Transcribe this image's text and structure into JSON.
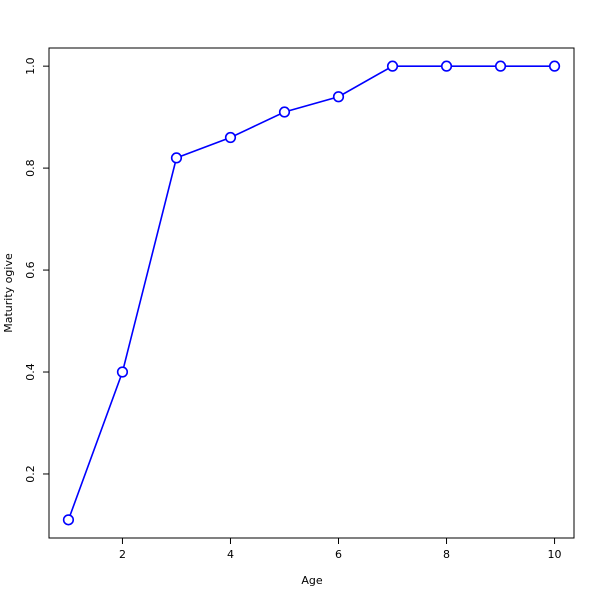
{
  "chart_data": {
    "type": "line",
    "title": "",
    "xlabel": "Age",
    "ylabel": "Maturity ogive",
    "x": [
      1,
      2,
      3,
      4,
      5,
      6,
      7,
      8,
      9,
      10
    ],
    "series": [
      {
        "values": [
          0.11,
          0.4,
          0.82,
          0.86,
          0.91,
          0.94,
          1.0,
          1.0,
          1.0,
          1.0
        ],
        "color": "#0000ff",
        "marker": "open-circle"
      }
    ],
    "xlim": [
      0.64,
      10.36
    ],
    "ylim": [
      0.0744,
      1.0356
    ],
    "xticks": [
      "2",
      "4",
      "6",
      "8",
      "10"
    ],
    "yticks": [
      "0.2",
      "0.4",
      "0.6",
      "0.8",
      "1.0"
    ],
    "grid": false
  }
}
